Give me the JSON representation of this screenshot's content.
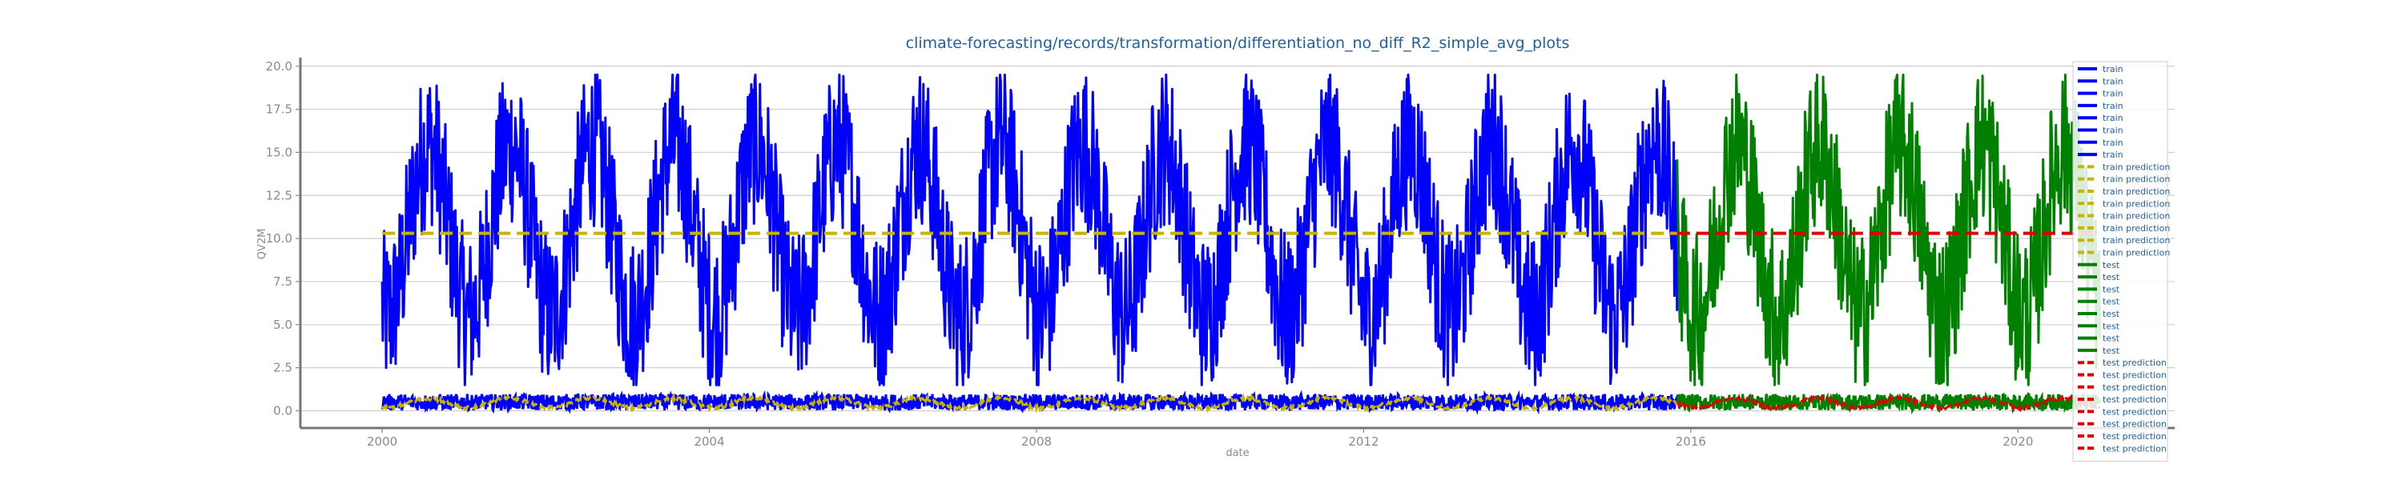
{
  "chart_data": {
    "type": "line",
    "title": "climate-forecasting/records/transformation/differentiation_no_diff_R2_simple_avg_plots",
    "xlabel": "date",
    "ylabel": "QV2M",
    "xlim": [
      "1999-01",
      "2021-12"
    ],
    "ylim": [
      -1.0,
      20.5
    ],
    "x_ticks": [
      "2000",
      "2004",
      "2008",
      "2012",
      "2016",
      "2020"
    ],
    "y_ticks": [
      "0.0",
      "2.5",
      "5.0",
      "7.5",
      "10.0",
      "12.5",
      "15.0",
      "17.5",
      "20.0"
    ],
    "grid": true,
    "legend_position": "right",
    "series": [
      {
        "name": "train",
        "style": "solid",
        "color": "#0000ff",
        "x_range": [
          "2000-01-01",
          "2015-10-31"
        ],
        "seasonal_min": 1.5,
        "seasonal_max": 19.5,
        "secondary_band": [
          0.0,
          1.0
        ]
      },
      {
        "name": "train prediction",
        "style": "dashed",
        "color": "#c8b400",
        "x_range": [
          "2000-01-01",
          "2015-10-31"
        ],
        "value": 10.3,
        "secondary_band": [
          0.1,
          0.8
        ]
      },
      {
        "name": "test",
        "style": "solid",
        "color": "#008000",
        "x_range": [
          "2015-11-01",
          "2020-12-31"
        ],
        "seasonal_min": 1.5,
        "seasonal_max": 19.5,
        "secondary_band": [
          0.0,
          1.0
        ]
      },
      {
        "name": "test prediction",
        "style": "dashed",
        "color": "#e00000",
        "x_range": [
          "2015-11-01",
          "2020-12-31"
        ],
        "value": 10.3,
        "secondary_band": [
          0.1,
          0.8
        ]
      }
    ],
    "legend_entries": [
      {
        "label": "train",
        "series": 0
      },
      {
        "label": "train",
        "series": 0
      },
      {
        "label": "train",
        "series": 0
      },
      {
        "label": "train",
        "series": 0
      },
      {
        "label": "train",
        "series": 0
      },
      {
        "label": "train",
        "series": 0
      },
      {
        "label": "train",
        "series": 0
      },
      {
        "label": "train",
        "series": 0
      },
      {
        "label": "train prediction",
        "series": 1
      },
      {
        "label": "train prediction",
        "series": 1
      },
      {
        "label": "train prediction",
        "series": 1
      },
      {
        "label": "train prediction",
        "series": 1
      },
      {
        "label": "train prediction",
        "series": 1
      },
      {
        "label": "train prediction",
        "series": 1
      },
      {
        "label": "train prediction",
        "series": 1
      },
      {
        "label": "train prediction",
        "series": 1
      },
      {
        "label": "test",
        "series": 2
      },
      {
        "label": "test",
        "series": 2
      },
      {
        "label": "test",
        "series": 2
      },
      {
        "label": "test",
        "series": 2
      },
      {
        "label": "test",
        "series": 2
      },
      {
        "label": "test",
        "series": 2
      },
      {
        "label": "test",
        "series": 2
      },
      {
        "label": "test",
        "series": 2
      },
      {
        "label": "test prediction",
        "series": 3
      },
      {
        "label": "test prediction",
        "series": 3
      },
      {
        "label": "test prediction",
        "series": 3
      },
      {
        "label": "test prediction",
        "series": 3
      },
      {
        "label": "test prediction",
        "series": 3
      },
      {
        "label": "test prediction",
        "series": 3
      },
      {
        "label": "test prediction",
        "series": 3
      },
      {
        "label": "test prediction",
        "series": 3
      }
    ]
  }
}
